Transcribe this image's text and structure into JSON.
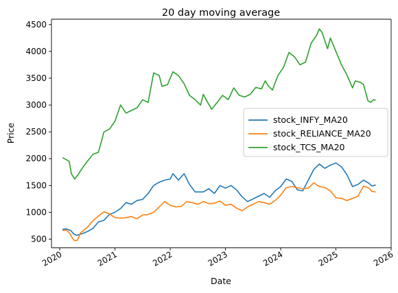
{
  "chart_data": {
    "type": "line",
    "title": "20 day moving average",
    "xlabel": "Date",
    "ylabel": "Price",
    "x_ticks": [
      "2020",
      "2021",
      "2022",
      "2023",
      "2024",
      "2025",
      "2026"
    ],
    "y_ticks": [
      "500",
      "1000",
      "1500",
      "2000",
      "2500",
      "3000",
      "3500",
      "4000",
      "4500"
    ],
    "xlim": [
      2019.85,
      2026.0
    ],
    "ylim": [
      340,
      4600
    ],
    "legend_position": "center-right",
    "grid": false,
    "series": [
      {
        "name": "stock_INFY_MA20",
        "color": "#1f77b4",
        "points": [
          [
            2020.05,
            680
          ],
          [
            2020.12,
            690
          ],
          [
            2020.2,
            660
          ],
          [
            2020.25,
            600
          ],
          [
            2020.3,
            570
          ],
          [
            2020.4,
            600
          ],
          [
            2020.5,
            640
          ],
          [
            2020.6,
            700
          ],
          [
            2020.7,
            820
          ],
          [
            2020.8,
            850
          ],
          [
            2020.9,
            960
          ],
          [
            2021.0,
            1000
          ],
          [
            2021.1,
            1070
          ],
          [
            2021.2,
            1180
          ],
          [
            2021.3,
            1150
          ],
          [
            2021.4,
            1220
          ],
          [
            2021.5,
            1240
          ],
          [
            2021.6,
            1350
          ],
          [
            2021.7,
            1500
          ],
          [
            2021.8,
            1560
          ],
          [
            2021.9,
            1600
          ],
          [
            2022.0,
            1620
          ],
          [
            2022.05,
            1720
          ],
          [
            2022.15,
            1600
          ],
          [
            2022.25,
            1720
          ],
          [
            2022.35,
            1520
          ],
          [
            2022.45,
            1380
          ],
          [
            2022.6,
            1380
          ],
          [
            2022.7,
            1440
          ],
          [
            2022.8,
            1350
          ],
          [
            2022.9,
            1500
          ],
          [
            2023.0,
            1450
          ],
          [
            2023.1,
            1500
          ],
          [
            2023.2,
            1420
          ],
          [
            2023.3,
            1290
          ],
          [
            2023.4,
            1200
          ],
          [
            2023.5,
            1250
          ],
          [
            2023.6,
            1300
          ],
          [
            2023.7,
            1350
          ],
          [
            2023.8,
            1280
          ],
          [
            2023.9,
            1400
          ],
          [
            2024.0,
            1480
          ],
          [
            2024.1,
            1620
          ],
          [
            2024.2,
            1580
          ],
          [
            2024.3,
            1420
          ],
          [
            2024.4,
            1400
          ],
          [
            2024.5,
            1600
          ],
          [
            2024.6,
            1800
          ],
          [
            2024.7,
            1900
          ],
          [
            2024.8,
            1820
          ],
          [
            2024.9,
            1880
          ],
          [
            2025.0,
            1920
          ],
          [
            2025.1,
            1850
          ],
          [
            2025.2,
            1700
          ],
          [
            2025.3,
            1480
          ],
          [
            2025.4,
            1520
          ],
          [
            2025.5,
            1600
          ],
          [
            2025.6,
            1540
          ],
          [
            2025.65,
            1490
          ],
          [
            2025.72,
            1510
          ]
        ]
      },
      {
        "name": "stock_RELIANCE_MA20",
        "color": "#ff7f0e",
        "points": [
          [
            2020.05,
            660
          ],
          [
            2020.12,
            670
          ],
          [
            2020.18,
            610
          ],
          [
            2020.22,
            530
          ],
          [
            2020.27,
            470
          ],
          [
            2020.32,
            480
          ],
          [
            2020.38,
            620
          ],
          [
            2020.5,
            720
          ],
          [
            2020.6,
            840
          ],
          [
            2020.7,
            930
          ],
          [
            2020.8,
            1010
          ],
          [
            2020.9,
            970
          ],
          [
            2021.0,
            900
          ],
          [
            2021.1,
            890
          ],
          [
            2021.2,
            900
          ],
          [
            2021.3,
            920
          ],
          [
            2021.4,
            880
          ],
          [
            2021.5,
            950
          ],
          [
            2021.6,
            960
          ],
          [
            2021.7,
            1000
          ],
          [
            2021.8,
            1100
          ],
          [
            2021.9,
            1200
          ],
          [
            2022.0,
            1130
          ],
          [
            2022.1,
            1100
          ],
          [
            2022.2,
            1110
          ],
          [
            2022.3,
            1200
          ],
          [
            2022.4,
            1180
          ],
          [
            2022.5,
            1150
          ],
          [
            2022.6,
            1200
          ],
          [
            2022.7,
            1160
          ],
          [
            2022.8,
            1170
          ],
          [
            2022.9,
            1210
          ],
          [
            2023.0,
            1130
          ],
          [
            2023.1,
            1150
          ],
          [
            2023.2,
            1080
          ],
          [
            2023.3,
            1030
          ],
          [
            2023.4,
            1100
          ],
          [
            2023.5,
            1150
          ],
          [
            2023.6,
            1200
          ],
          [
            2023.7,
            1180
          ],
          [
            2023.8,
            1150
          ],
          [
            2023.9,
            1220
          ],
          [
            2024.0,
            1320
          ],
          [
            2024.1,
            1460
          ],
          [
            2024.2,
            1480
          ],
          [
            2024.3,
            1460
          ],
          [
            2024.4,
            1440
          ],
          [
            2024.5,
            1450
          ],
          [
            2024.6,
            1550
          ],
          [
            2024.7,
            1480
          ],
          [
            2024.8,
            1460
          ],
          [
            2024.9,
            1400
          ],
          [
            2025.0,
            1270
          ],
          [
            2025.1,
            1260
          ],
          [
            2025.2,
            1220
          ],
          [
            2025.3,
            1260
          ],
          [
            2025.4,
            1300
          ],
          [
            2025.5,
            1490
          ],
          [
            2025.6,
            1450
          ],
          [
            2025.65,
            1390
          ],
          [
            2025.72,
            1380
          ]
        ]
      },
      {
        "name": "stock_TCS_MA20",
        "color": "#2ca02c",
        "points": [
          [
            2020.05,
            2020
          ],
          [
            2020.12,
            1980
          ],
          [
            2020.17,
            1950
          ],
          [
            2020.21,
            1720
          ],
          [
            2020.27,
            1620
          ],
          [
            2020.33,
            1700
          ],
          [
            2020.42,
            1840
          ],
          [
            2020.5,
            1950
          ],
          [
            2020.6,
            2080
          ],
          [
            2020.7,
            2120
          ],
          [
            2020.8,
            2500
          ],
          [
            2020.9,
            2550
          ],
          [
            2021.0,
            2700
          ],
          [
            2021.1,
            3000
          ],
          [
            2021.2,
            2850
          ],
          [
            2021.3,
            2900
          ],
          [
            2021.4,
            2950
          ],
          [
            2021.5,
            3100
          ],
          [
            2021.6,
            3050
          ],
          [
            2021.7,
            3600
          ],
          [
            2021.8,
            3550
          ],
          [
            2021.85,
            3350
          ],
          [
            2021.95,
            3380
          ],
          [
            2022.05,
            3620
          ],
          [
            2022.15,
            3550
          ],
          [
            2022.25,
            3400
          ],
          [
            2022.35,
            3180
          ],
          [
            2022.45,
            3100
          ],
          [
            2022.55,
            3000
          ],
          [
            2022.6,
            3200
          ],
          [
            2022.65,
            3100
          ],
          [
            2022.75,
            2920
          ],
          [
            2022.85,
            3050
          ],
          [
            2022.95,
            3180
          ],
          [
            2023.05,
            3100
          ],
          [
            2023.15,
            3320
          ],
          [
            2023.25,
            3180
          ],
          [
            2023.35,
            3150
          ],
          [
            2023.45,
            3200
          ],
          [
            2023.55,
            3330
          ],
          [
            2023.65,
            3300
          ],
          [
            2023.72,
            3450
          ],
          [
            2023.78,
            3350
          ],
          [
            2023.85,
            3280
          ],
          [
            2023.95,
            3550
          ],
          [
            2024.05,
            3700
          ],
          [
            2024.15,
            3980
          ],
          [
            2024.25,
            3900
          ],
          [
            2024.35,
            3750
          ],
          [
            2024.45,
            3800
          ],
          [
            2024.55,
            4150
          ],
          [
            2024.65,
            4300
          ],
          [
            2024.7,
            4420
          ],
          [
            2024.75,
            4350
          ],
          [
            2024.8,
            4200
          ],
          [
            2024.85,
            4050
          ],
          [
            2024.9,
            4250
          ],
          [
            2025.0,
            4000
          ],
          [
            2025.1,
            3750
          ],
          [
            2025.2,
            3560
          ],
          [
            2025.3,
            3320
          ],
          [
            2025.35,
            3450
          ],
          [
            2025.45,
            3420
          ],
          [
            2025.5,
            3380
          ],
          [
            2025.58,
            3080
          ],
          [
            2025.63,
            3050
          ],
          [
            2025.68,
            3100
          ],
          [
            2025.72,
            3090
          ]
        ]
      }
    ]
  }
}
